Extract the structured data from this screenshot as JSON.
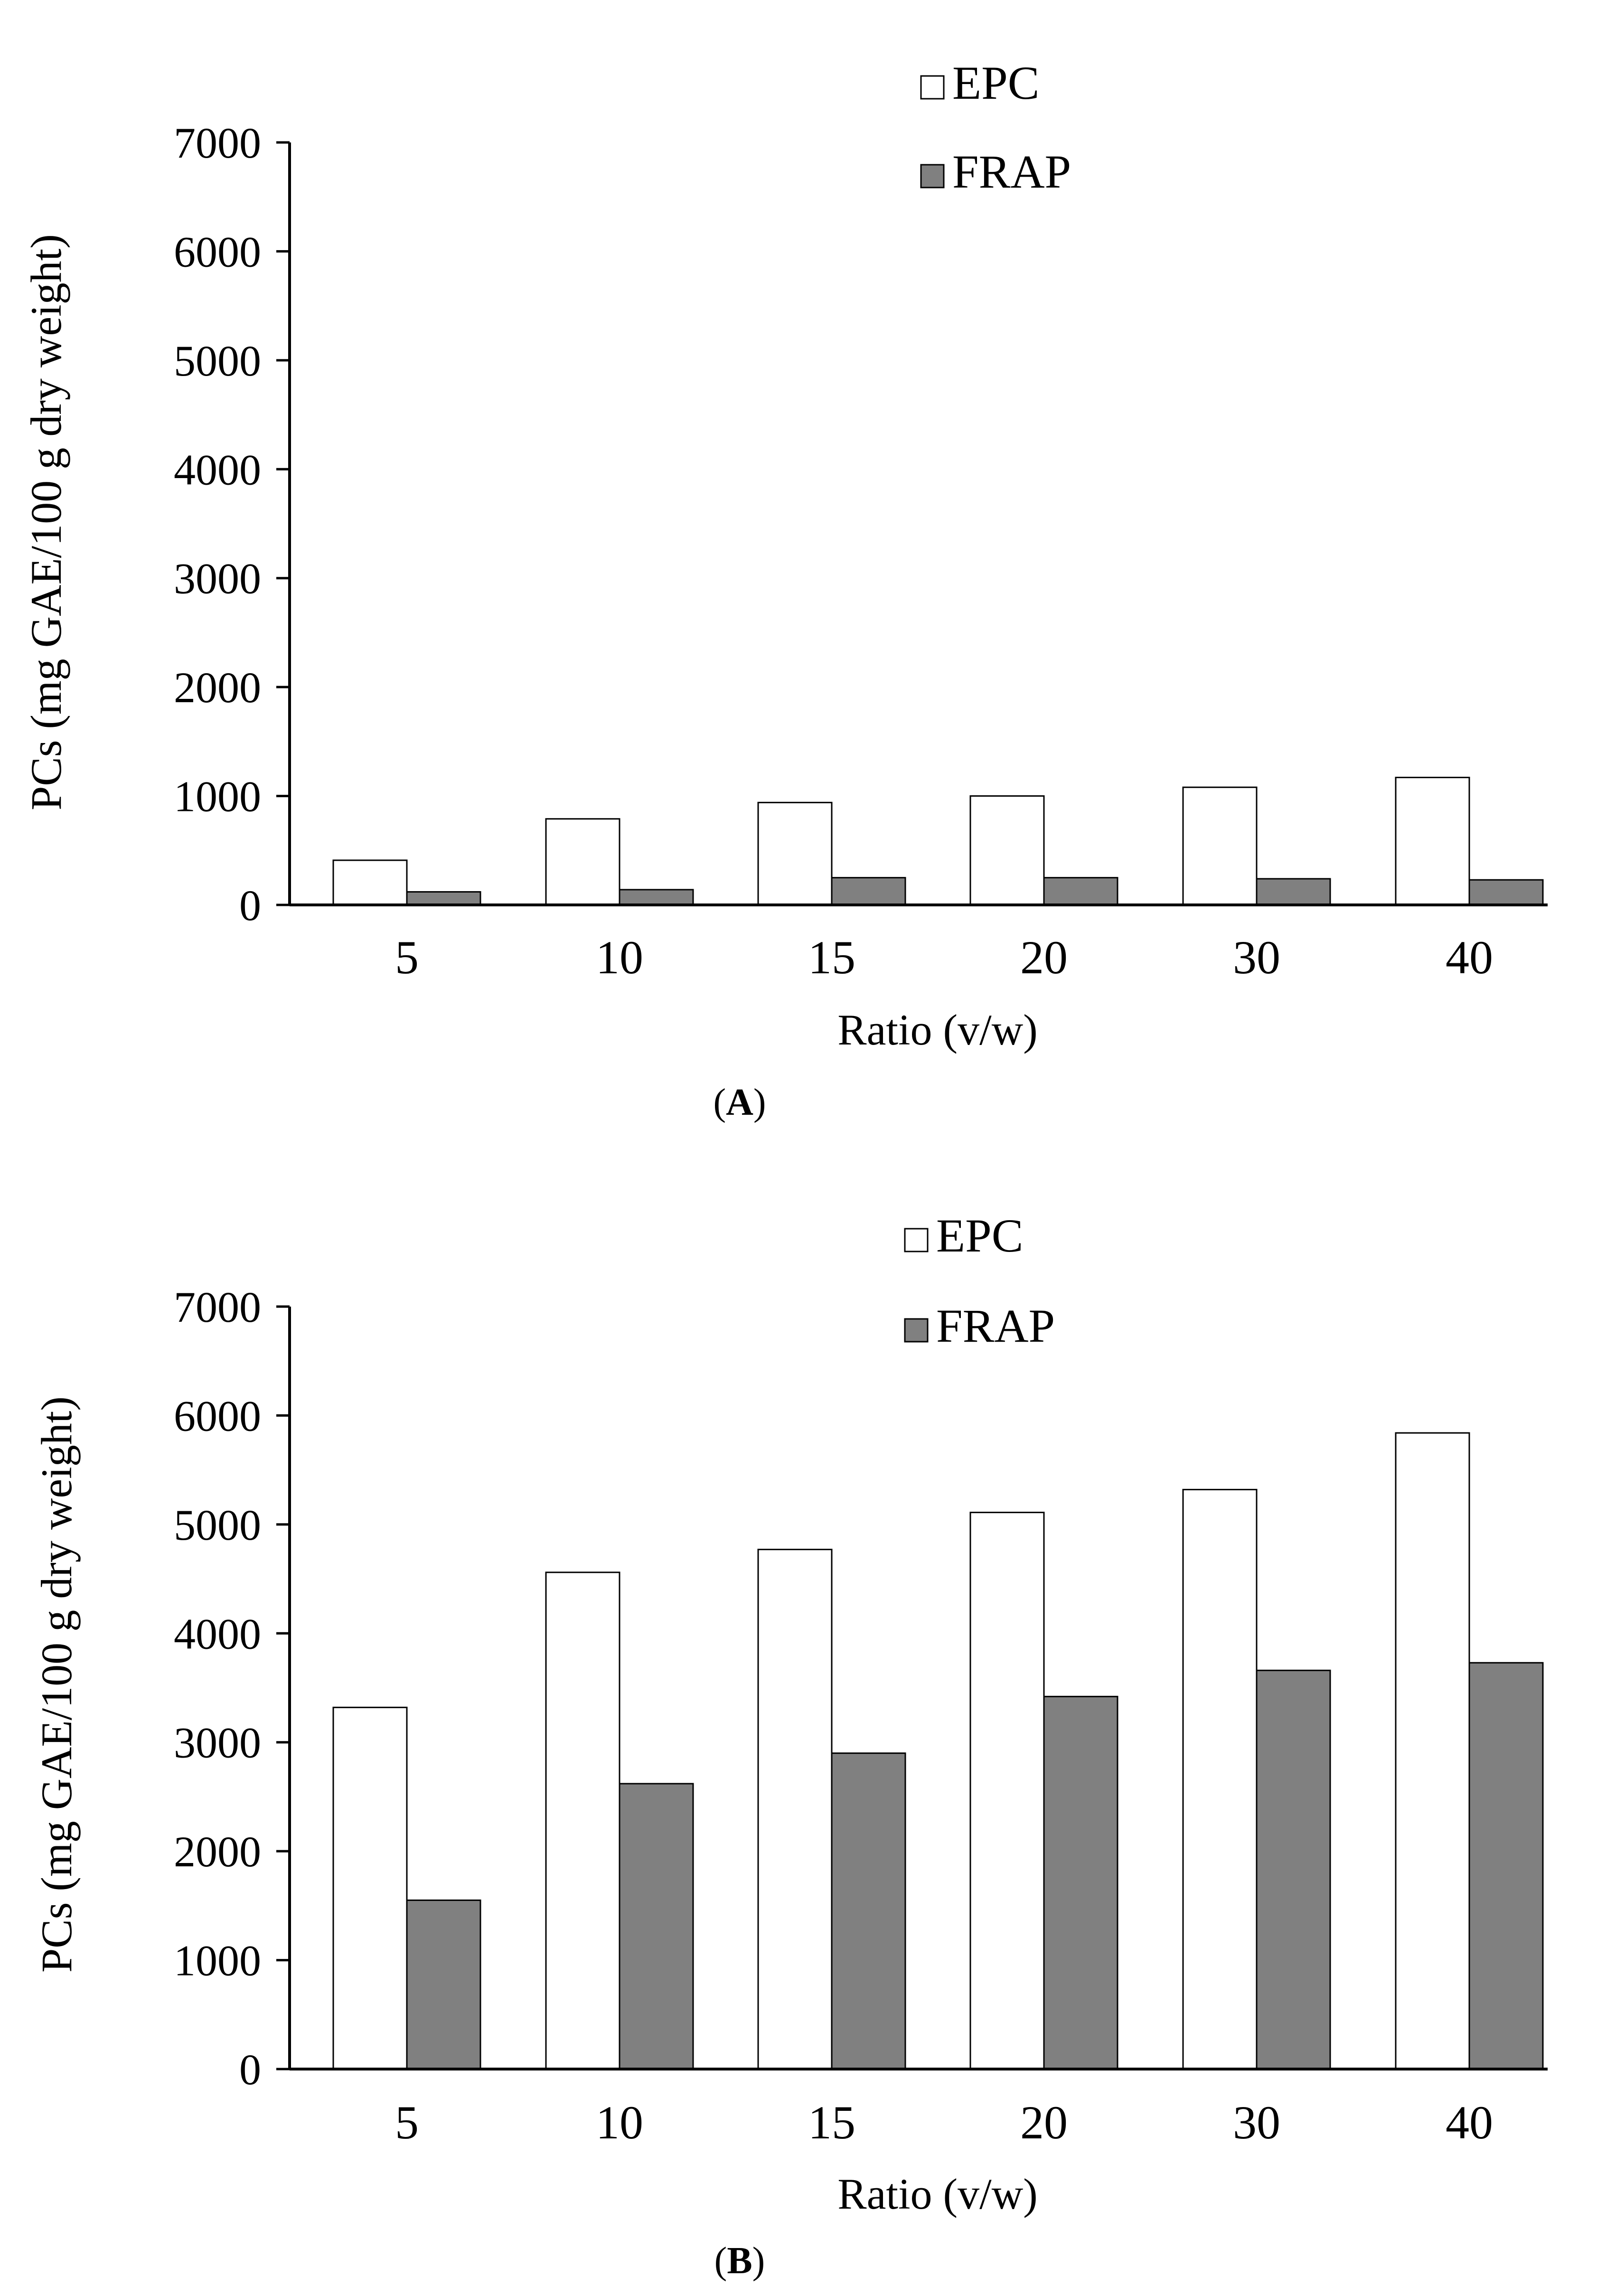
{
  "chart_data": [
    {
      "type": "bar",
      "panel_label": "A",
      "categories": [
        "5",
        "10",
        "15",
        "20",
        "30",
        "40"
      ],
      "series": [
        {
          "name": "EPC",
          "values": [
            410,
            790,
            940,
            1000,
            1080,
            1170
          ]
        },
        {
          "name": "FRAP",
          "values": [
            120,
            140,
            250,
            250,
            240,
            230
          ]
        }
      ],
      "xlabel": "Ratio (v/w)",
      "ylabel": "PCs (mg GAE/100 g dry weight)",
      "ylim": [
        0,
        7000
      ],
      "yticks": [
        "0",
        "1000",
        "2000",
        "3000",
        "4000",
        "5000",
        "6000",
        "7000"
      ],
      "legend_position": "top-center",
      "grid": false
    },
    {
      "type": "bar",
      "panel_label": "B",
      "categories": [
        "5",
        "10",
        "15",
        "20",
        "30",
        "40"
      ],
      "series": [
        {
          "name": "EPC",
          "values": [
            3320,
            4560,
            4770,
            5110,
            5320,
            5840
          ]
        },
        {
          "name": "FRAP",
          "values": [
            1550,
            2620,
            2900,
            3420,
            3660,
            3730
          ]
        }
      ],
      "xlabel": "Ratio (v/w)",
      "ylabel": "PCs (mg GAE/100 g dry weight)",
      "ylim": [
        0,
        7000
      ],
      "yticks": [
        "0",
        "1000",
        "2000",
        "3000",
        "4000",
        "5000",
        "6000",
        "7000"
      ],
      "legend_position": "top-center",
      "grid": false
    }
  ],
  "colors": {
    "epc_fill": "#ffffff",
    "frap_fill": "#808080",
    "axis": "#000000",
    "bar_stroke": "#000000"
  }
}
